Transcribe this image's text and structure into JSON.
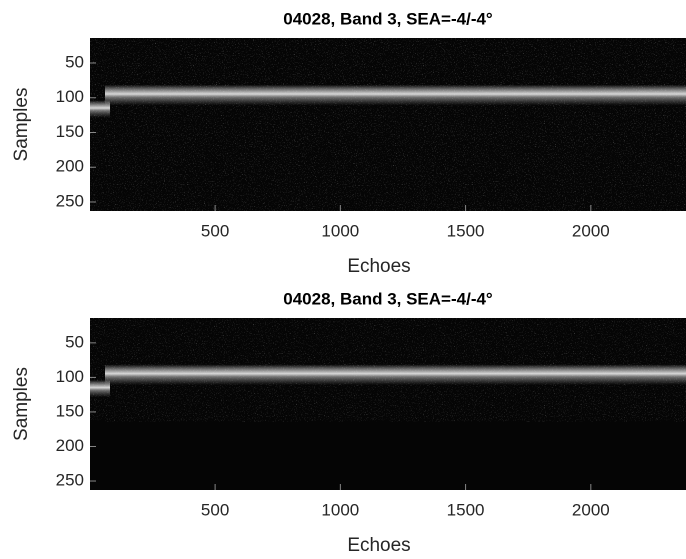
{
  "chart_data": [
    {
      "type": "image",
      "title": "04028, Band 3, SEA=-4/-4°",
      "xlabel": "Echoes",
      "ylabel": "Samples",
      "xlim": [
        0.5,
        2380
      ],
      "ylim": [
        14,
        263
      ],
      "y_reversed": true,
      "xticks": [
        500,
        1000,
        1500,
        2000
      ],
      "yticks": [
        50,
        100,
        150,
        200,
        250
      ],
      "colormap": "gray"
    },
    {
      "type": "image",
      "title": "04028, Band 3, SEA=-4/-4°",
      "xlabel": "Echoes",
      "ylabel": "Samples",
      "xlim": [
        0.5,
        2380
      ],
      "ylim": [
        14,
        263
      ],
      "y_reversed": true,
      "xticks": [
        500,
        1000,
        1500,
        2000
      ],
      "yticks": [
        50,
        100,
        150,
        200,
        250
      ],
      "colormap": "gray"
    }
  ]
}
